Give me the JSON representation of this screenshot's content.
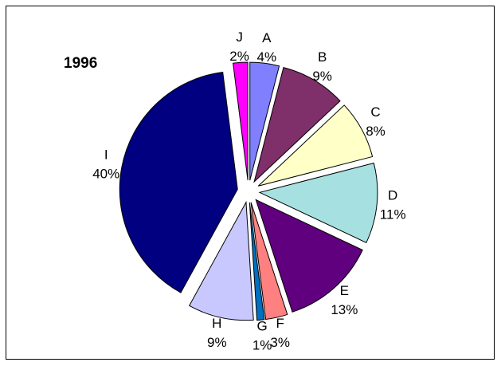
{
  "chart_data": {
    "type": "pie",
    "title": "1996",
    "categories": [
      "A",
      "B",
      "C",
      "D",
      "E",
      "F",
      "G",
      "H",
      "I",
      "J"
    ],
    "values": [
      4,
      9,
      8,
      11,
      13,
      3,
      1,
      9,
      40,
      2
    ],
    "value_labels": [
      "4%",
      "9%",
      "8%",
      "11%",
      "13%",
      "3%",
      "1%",
      "9%",
      "40%",
      "2%"
    ],
    "colors": [
      "#8080ff",
      "#7f2f6a",
      "#ffffc8",
      "#a6e0e0",
      "#60007f",
      "#ff8080",
      "#0070c0",
      "#c8c8ff",
      "#000080",
      "#ff00ff"
    ]
  }
}
